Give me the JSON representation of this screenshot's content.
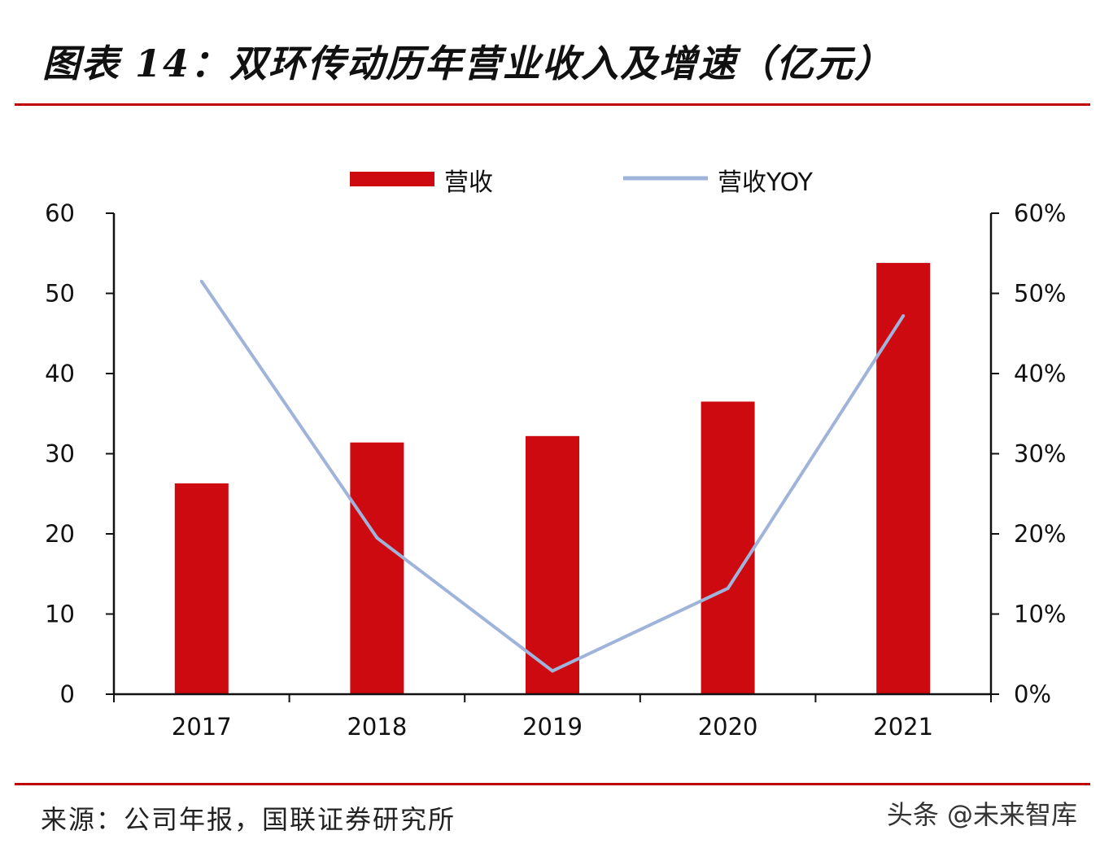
{
  "header": {
    "title": "图表 14：双环传动历年营业收入及增速（亿元）"
  },
  "footer": {
    "source": "来源：公司年报，国联证券研究所",
    "watermark": "头条 @未来智库"
  },
  "colors": {
    "bar": "#cc0a0f",
    "line": "#9fb3db",
    "rule": "#c00000",
    "axis": "#111111"
  },
  "chart_data": {
    "type": "bar+line",
    "categories": [
      "2017",
      "2018",
      "2019",
      "2020",
      "2021"
    ],
    "series": [
      {
        "name": "营收",
        "type": "bar",
        "axis": "left",
        "values": [
          26.3,
          31.4,
          32.2,
          36.5,
          53.8
        ]
      },
      {
        "name": "营收YOY",
        "type": "line",
        "axis": "right",
        "values": [
          51.5,
          19.5,
          2.9,
          13.2,
          47.2
        ]
      }
    ],
    "y_left": {
      "lim": [
        0,
        60
      ],
      "ticks": [
        "0",
        "10",
        "20",
        "30",
        "40",
        "50",
        "60"
      ]
    },
    "y_right": {
      "lim": [
        0,
        60
      ],
      "ticks": [
        "0%",
        "10%",
        "20%",
        "30%",
        "40%",
        "50%",
        "60%"
      ]
    },
    "legend_position": "top",
    "grid": false
  }
}
